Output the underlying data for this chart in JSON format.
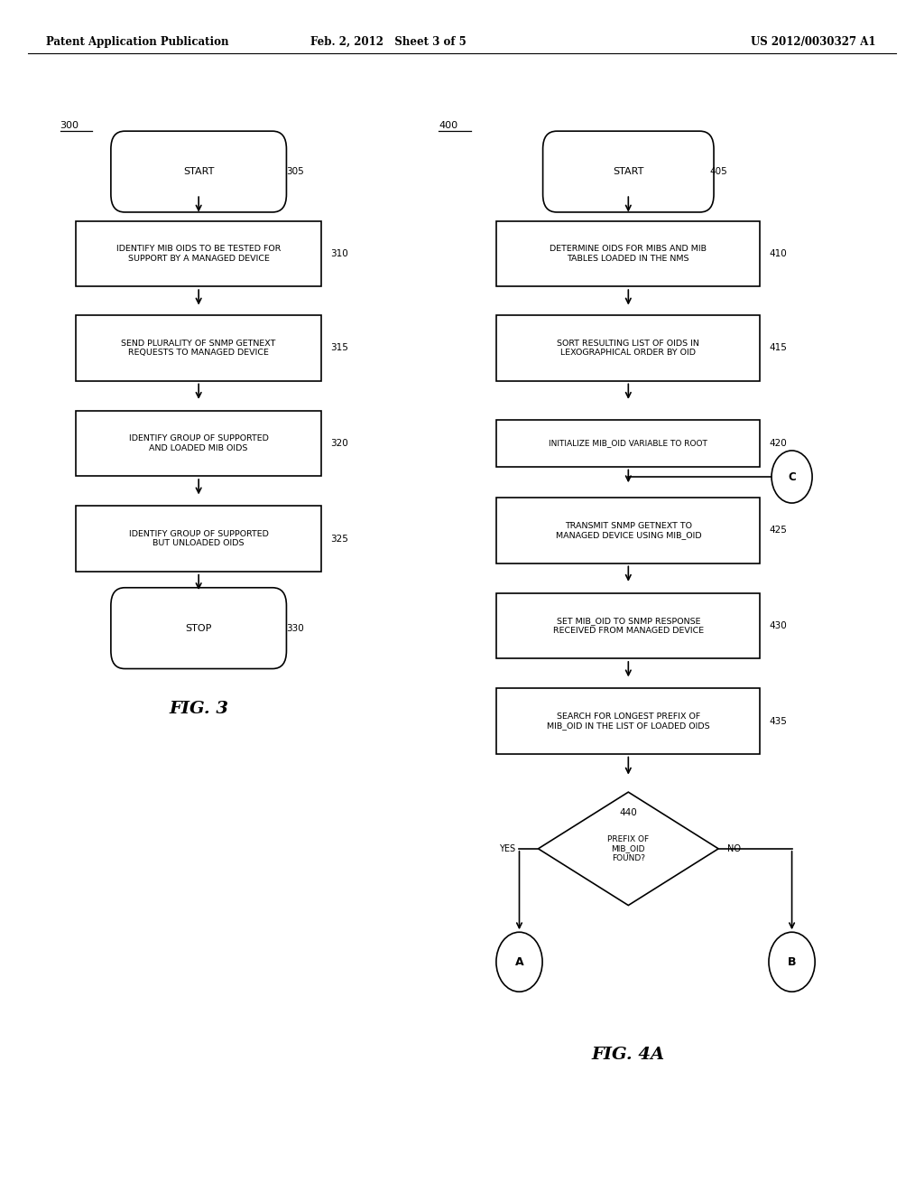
{
  "bg_color": "#ffffff",
  "header_left": "Patent Application Publication",
  "header_mid": "Feb. 2, 2012   Sheet 3 of 5",
  "header_right": "US 2012/0030327 A1",
  "fig3_label": "300",
  "fig3_caption": "FIG. 3",
  "fig4a_label": "400",
  "fig4a_caption": "FIG. 4A"
}
